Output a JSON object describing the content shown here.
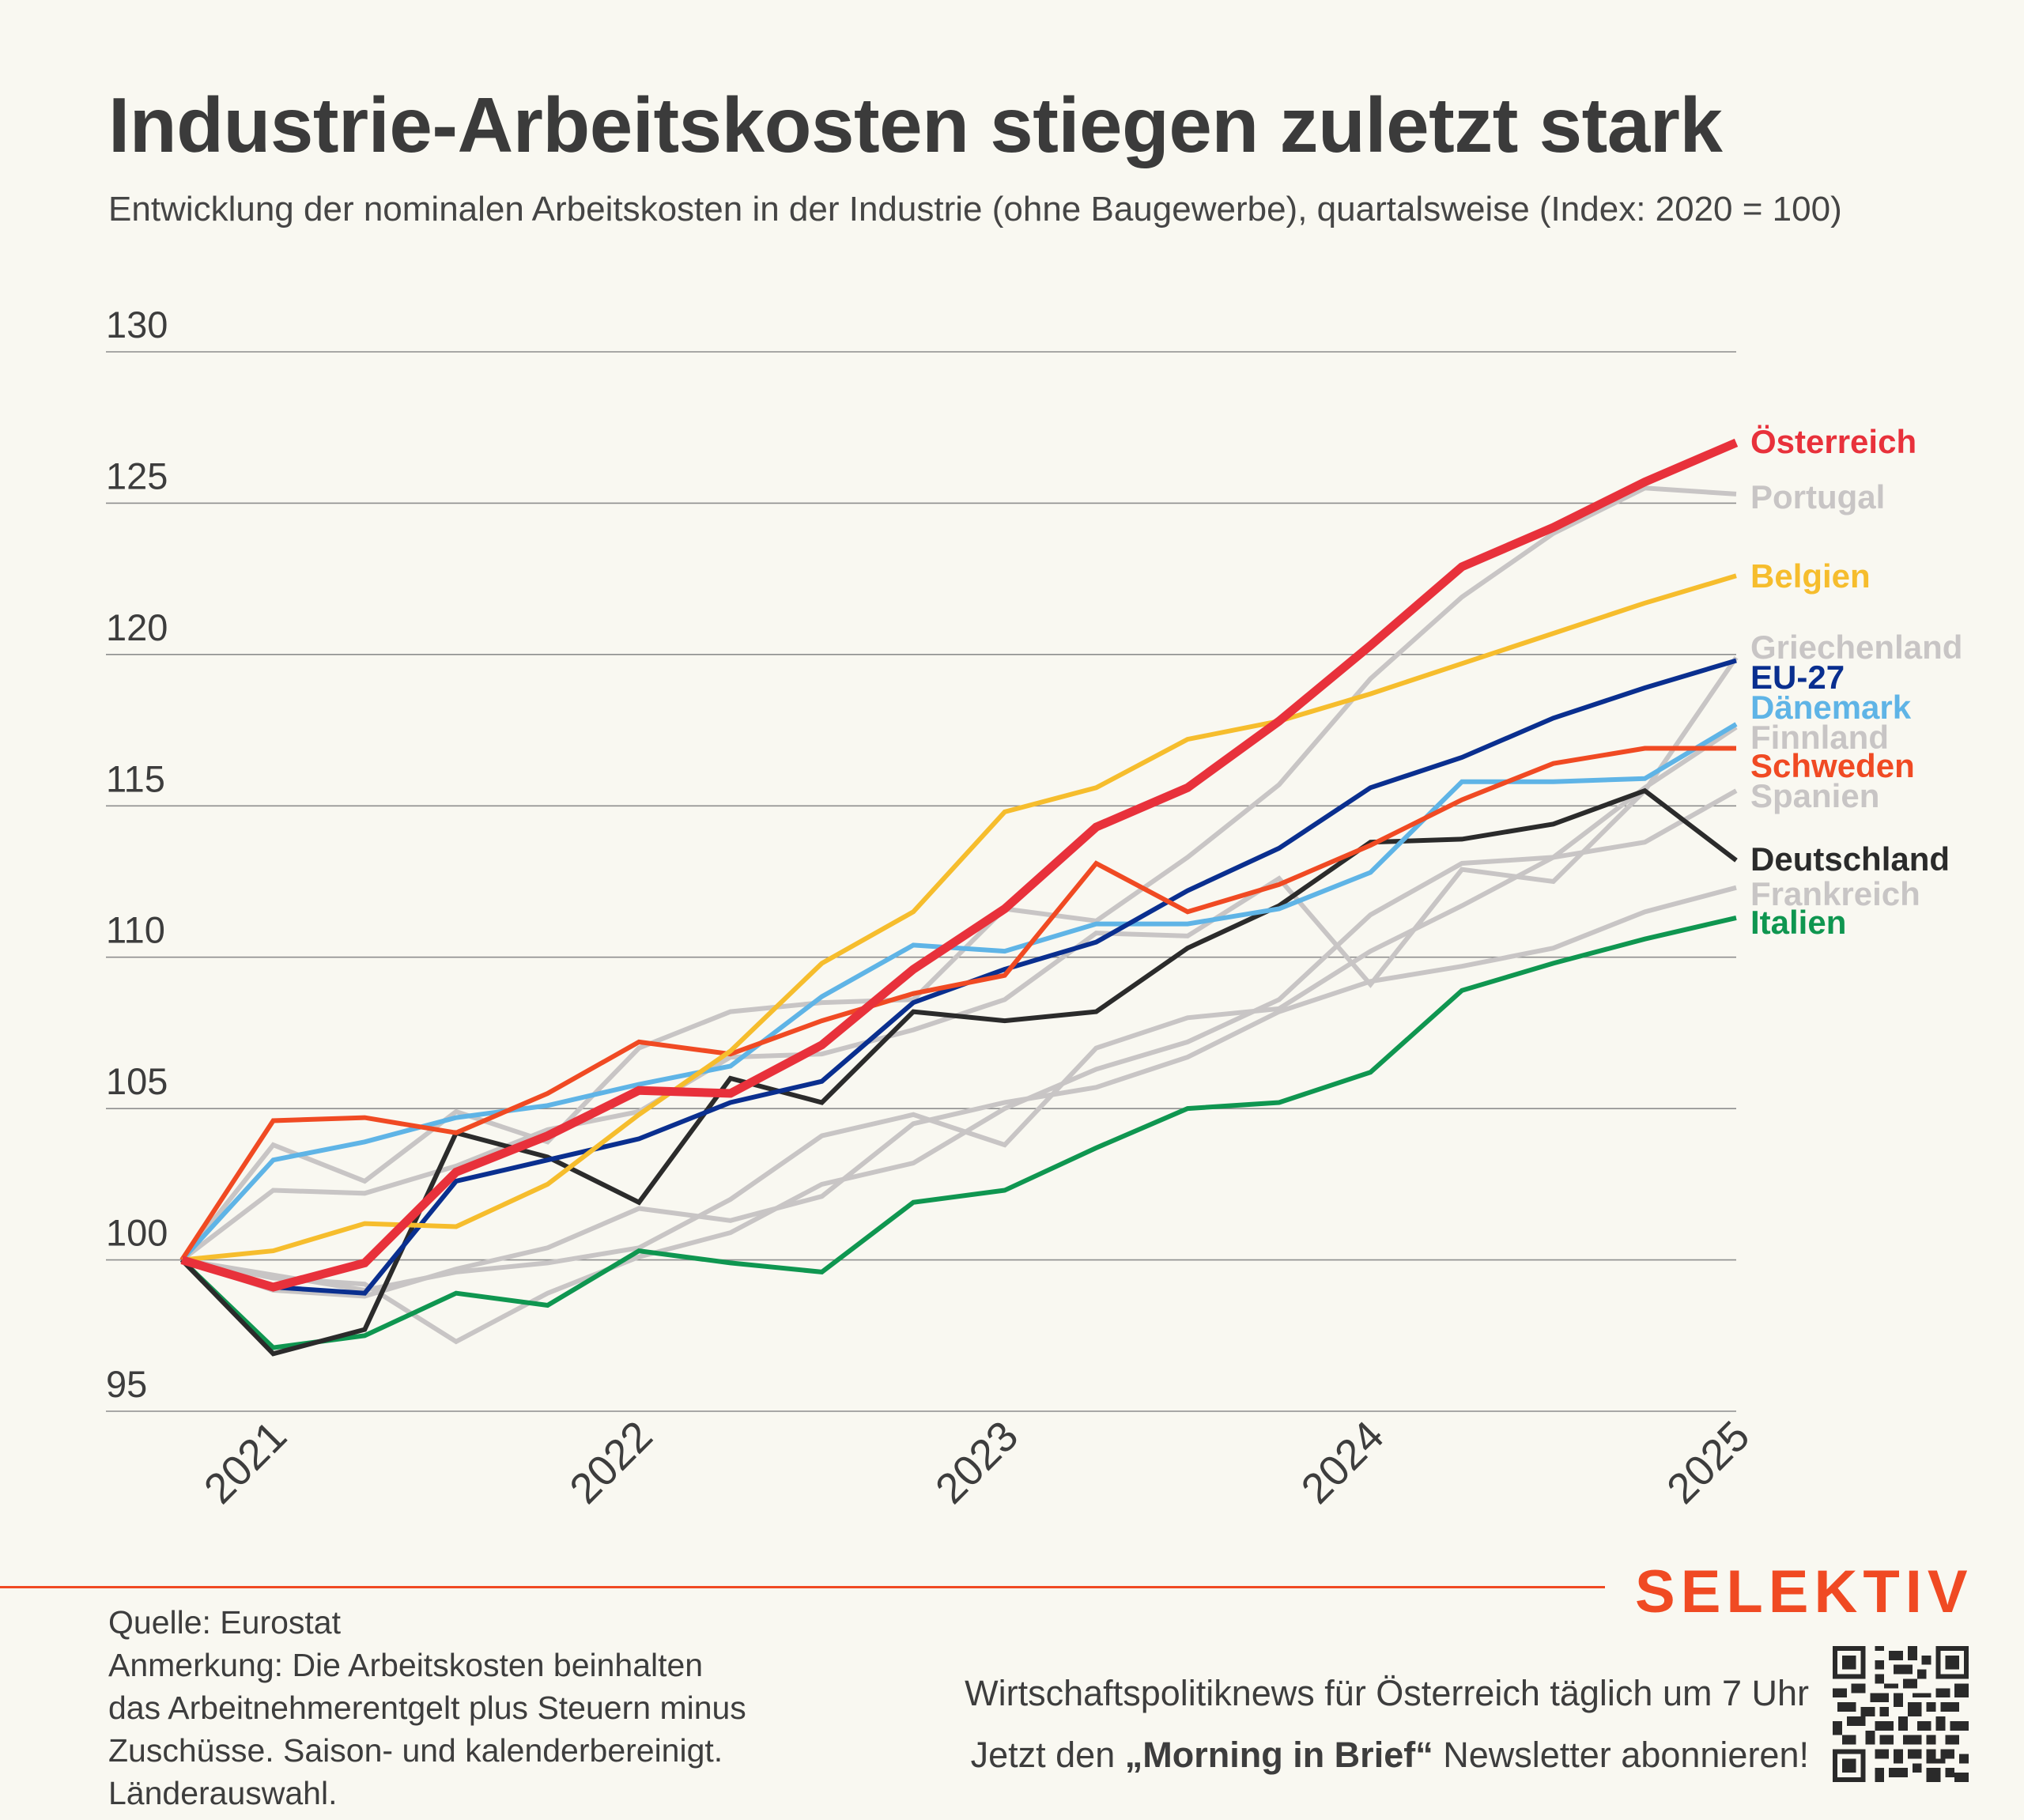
{
  "header": {
    "title": "Industrie-Arbeitskosten stiegen zuletzt stark",
    "subtitle": "Entwicklung der nominalen Arbeitskosten in der Industrie (ohne Baugewerbe), quartalsweise (Index: 2020 = 100)"
  },
  "footer": {
    "source": "Quelle: Eurostat",
    "note": "Anmerkung: Die Arbeitskosten beinhalten das Arbeitnehmerentgelt plus Steuern minus Zuschüsse. Saison- und kalenderbereinigt. Länderauswahl.",
    "brand": "SELEKTIV",
    "promo_line1": "Wirtschaftspolitiknews für Österreich täglich um 7 Uhr",
    "promo_line2_pre": "Jetzt den ",
    "promo_line2_bold": "„Morning in Brief“",
    "promo_line2_post": " Newsletter abonnieren!",
    "qr_icon": "qr-code-icon"
  },
  "chart_data": {
    "type": "line",
    "title": "Industrie-Arbeitskosten stiegen zuletzt stark",
    "subtitle": "Entwicklung der nominalen Arbeitskosten in der Industrie (ohne Baugewerbe), quartalsweise (Index: 2020 = 100)",
    "xlabel": "",
    "ylabel": "",
    "ylim": [
      95,
      130
    ],
    "yticks": [
      95,
      100,
      105,
      110,
      115,
      120,
      125,
      130
    ],
    "xticks": [
      "2021",
      "2022",
      "2023",
      "2024",
      "2025"
    ],
    "x_quarters": [
      "2020-Q4",
      "2021-Q1",
      "2021-Q2",
      "2021-Q3",
      "2021-Q4",
      "2022-Q1",
      "2022-Q2",
      "2022-Q3",
      "2022-Q4",
      "2023-Q1",
      "2023-Q2",
      "2023-Q3",
      "2023-Q4",
      "2024-Q1",
      "2024-Q2",
      "2024-Q3",
      "2024-Q4",
      "2025-Q1"
    ],
    "grid": "horizontal",
    "legend": "direct labels at line ends, right",
    "series": [
      {
        "name": "Portugal",
        "color": "#c8c5c5",
        "values": [
          100,
          103.8,
          102.6,
          104.9,
          103.9,
          107.0,
          108.2,
          108.5,
          108.6,
          111.6,
          111.2,
          113.3,
          115.7,
          119.2,
          121.9,
          124.0,
          125.5,
          125.3
        ]
      },
      {
        "name": "Griechenland",
        "color": "#c8c5c5",
        "values": [
          100,
          102.3,
          102.2,
          103.1,
          104.3,
          104.9,
          106.7,
          106.8,
          107.6,
          108.6,
          110.8,
          110.7,
          112.6,
          109.1,
          112.9,
          112.5,
          115.5,
          119.9
        ]
      },
      {
        "name": "Finnland",
        "color": "#c8c5c5",
        "values": [
          100,
          99.5,
          99.0,
          99.6,
          99.9,
          100.4,
          102.0,
          104.1,
          104.8,
          103.8,
          107.0,
          108.0,
          108.3,
          110.2,
          111.7,
          113.3,
          115.6,
          117.6
        ]
      },
      {
        "name": "Spanien",
        "color": "#c8c5c5",
        "values": [
          100,
          99.4,
          99.2,
          97.3,
          98.9,
          100.1,
          100.9,
          102.5,
          103.2,
          105.0,
          106.3,
          107.2,
          108.6,
          111.4,
          113.1,
          113.3,
          113.8,
          115.5
        ]
      },
      {
        "name": "Frankreich",
        "color": "#c8c5c5",
        "values": [
          100,
          99.0,
          98.8,
          99.7,
          100.4,
          101.7,
          101.3,
          102.1,
          104.5,
          105.2,
          105.7,
          106.7,
          108.2,
          109.2,
          109.7,
          110.3,
          111.5,
          112.3
        ]
      },
      {
        "name": "Italien",
        "color": "#0f9650",
        "values": [
          100,
          97.1,
          97.5,
          98.9,
          98.5,
          100.3,
          99.9,
          99.6,
          101.9,
          102.3,
          103.7,
          105.0,
          105.2,
          106.2,
          108.9,
          109.8,
          110.6,
          111.3
        ]
      },
      {
        "name": "Deutschland",
        "color": "#2b2b2b",
        "values": [
          100,
          96.9,
          97.7,
          104.2,
          103.4,
          101.9,
          106.0,
          105.2,
          108.2,
          107.9,
          108.2,
          110.3,
          111.7,
          113.8,
          113.9,
          114.4,
          115.5,
          113.2
        ]
      },
      {
        "name": "Dänemark",
        "color": "#5fb4e6",
        "values": [
          100,
          103.3,
          103.9,
          104.7,
          105.1,
          105.8,
          106.4,
          108.7,
          110.4,
          110.2,
          111.1,
          111.1,
          111.6,
          112.8,
          115.8,
          115.8,
          115.9,
          117.7
        ]
      },
      {
        "name": "EU-27",
        "color": "#0a2f8f",
        "values": [
          100,
          99.1,
          98.9,
          102.6,
          103.3,
          104.0,
          105.2,
          105.9,
          108.5,
          109.6,
          110.5,
          112.2,
          113.6,
          115.6,
          116.6,
          117.9,
          118.9,
          119.8
        ]
      },
      {
        "name": "Schweden",
        "color": "#f04a23",
        "values": [
          100,
          104.6,
          104.7,
          104.2,
          105.5,
          107.2,
          106.8,
          107.9,
          108.8,
          109.4,
          113.1,
          111.5,
          112.4,
          113.7,
          115.2,
          116.4,
          116.9,
          116.9
        ]
      },
      {
        "name": "Belgien",
        "color": "#f6bd2d",
        "values": [
          100,
          100.3,
          101.2,
          101.1,
          102.5,
          104.8,
          106.9,
          109.8,
          111.5,
          114.8,
          115.6,
          117.2,
          117.8,
          118.7,
          119.7,
          120.7,
          121.7,
          122.6
        ]
      },
      {
        "name": "Österreich",
        "color": "#e8313b",
        "highlight": true,
        "values": [
          100,
          99.1,
          99.9,
          102.9,
          104.1,
          105.6,
          105.5,
          107.1,
          109.6,
          111.6,
          114.3,
          115.6,
          117.8,
          120.3,
          122.9,
          124.2,
          125.7,
          127.0
        ]
      }
    ],
    "end_labels": [
      {
        "name": "Österreich",
        "color": "#e8313b"
      },
      {
        "name": "Portugal",
        "color": "#c8c5c5"
      },
      {
        "name": "Belgien",
        "color": "#f6bd2d"
      },
      {
        "name": "Griechenland",
        "color": "#c8c5c5"
      },
      {
        "name": "EU-27",
        "color": "#0a2f8f"
      },
      {
        "name": "Dänemark",
        "color": "#5fb4e6"
      },
      {
        "name": "Finnland",
        "color": "#c8c5c5"
      },
      {
        "name": "Schweden",
        "color": "#f04a23"
      },
      {
        "name": "Spanien",
        "color": "#c8c5c5"
      },
      {
        "name": "Deutschland",
        "color": "#2b2b2b"
      },
      {
        "name": "Frankreich",
        "color": "#c8c5c5"
      },
      {
        "name": "Italien",
        "color": "#0f9650"
      }
    ]
  }
}
